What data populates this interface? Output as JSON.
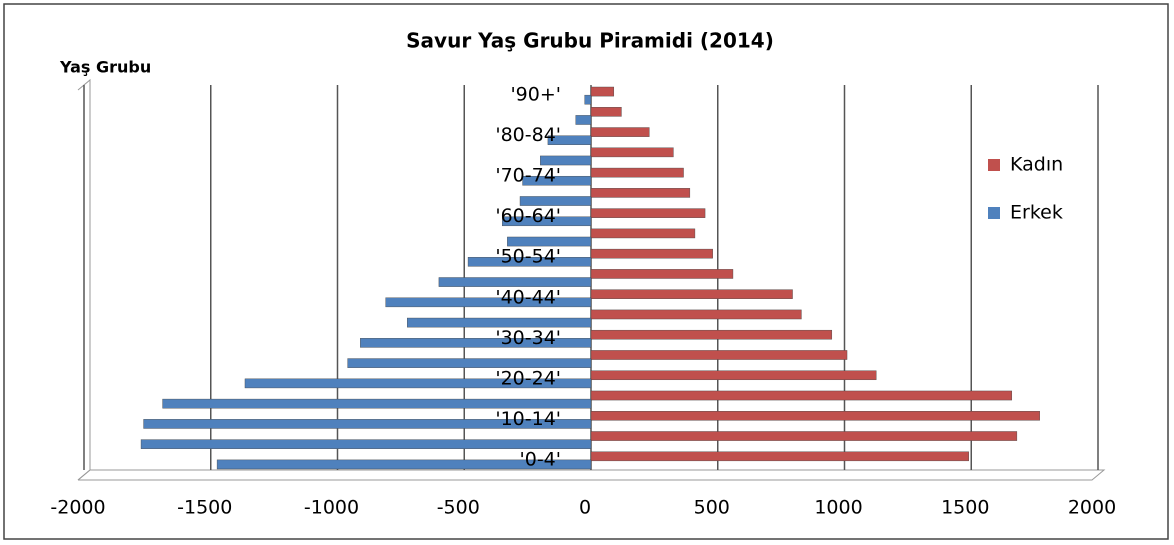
{
  "chart_data": {
    "type": "pyramid",
    "title": "Savur Yaş Grubu Piramidi (2014)",
    "y_label": "Yaş Grubu",
    "categories": [
      "'0-4'",
      null,
      "'10-14'",
      null,
      "'20-24'",
      null,
      "'30-34'",
      null,
      "'40-44'",
      null,
      "'50-54'",
      null,
      "'60-64'",
      null,
      "'70-74'",
      null,
      "'80-84'",
      null,
      "'90+'"
    ],
    "series": [
      {
        "name": "Kadın",
        "color": "#c0504d",
        "values": [
          1490,
          1680,
          1770,
          1660,
          1125,
          1010,
          950,
          830,
          795,
          560,
          480,
          410,
          450,
          390,
          365,
          325,
          230,
          120,
          90
        ]
      },
      {
        "name": "Erkek",
        "color": "#4f81bd",
        "values": [
          -1475,
          -1775,
          -1765,
          -1690,
          -1365,
          -960,
          -910,
          -725,
          -810,
          -600,
          -485,
          -330,
          -350,
          -280,
          -270,
          -200,
          -170,
          -60,
          -25
        ]
      }
    ],
    "xlim": [
      -2000,
      2000
    ],
    "xticks": [
      -2000,
      -1500,
      -1000,
      -500,
      0,
      500,
      1000,
      1500,
      2000
    ],
    "grid": true,
    "legend": "right"
  }
}
